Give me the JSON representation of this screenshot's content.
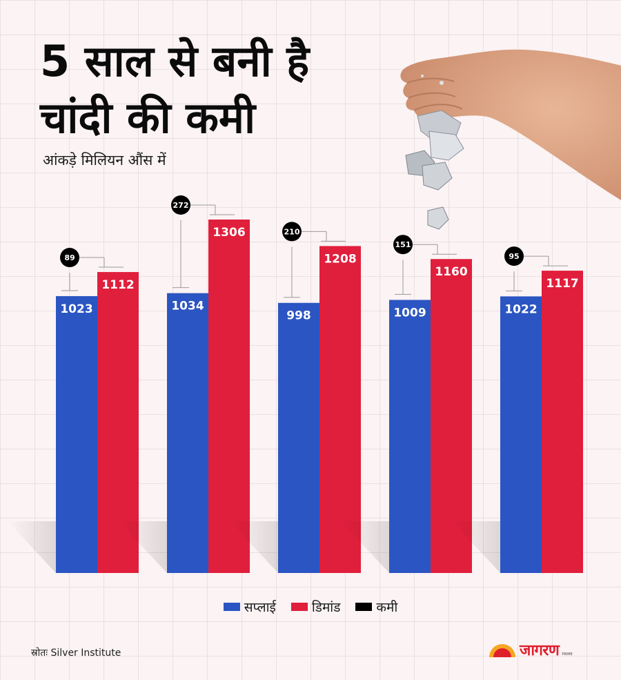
{
  "title_line1": "5 साल से बनी है",
  "title_line2": "चांदी की कमी",
  "subtitle": "आंकड़े मिलियन औंस में",
  "colors": {
    "supply": "#2b55c2",
    "demand": "#e01f3c",
    "deficit": "#000000"
  },
  "chart_data": {
    "type": "bar",
    "categories": [
      "",
      "",
      "",
      "",
      ""
    ],
    "series": [
      {
        "name": "सप्लाई",
        "values": [
          1023,
          1034,
          998,
          1009,
          1022
        ]
      },
      {
        "name": "डिमांड",
        "values": [
          1112,
          1306,
          1208,
          1160,
          1117
        ]
      },
      {
        "name": "कमी",
        "values": [
          89,
          272,
          210,
          151,
          95
        ]
      }
    ],
    "ylim": [
      0,
      1306
    ],
    "grid": true,
    "legend_placement": "bottom"
  },
  "legend": {
    "supply": "सप्लाई",
    "demand": "डिमांड",
    "deficit": "कमी"
  },
  "source": "स्रोतः Silver Institute",
  "logo": {
    "text": "जागरण",
    "sub": "PRIME"
  }
}
